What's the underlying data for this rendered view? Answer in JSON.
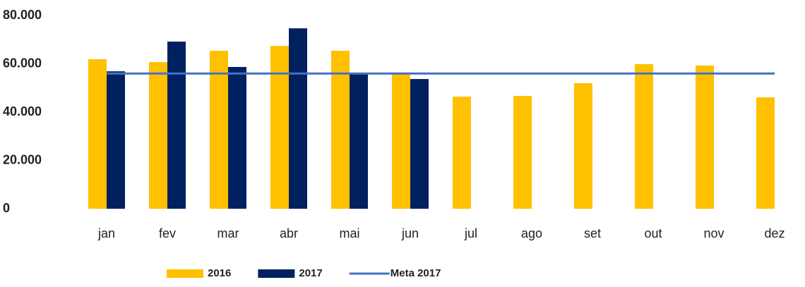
{
  "chart_data": {
    "type": "bar",
    "categories": [
      "jan",
      "fev",
      "mar",
      "abr",
      "mai",
      "jun",
      "jul",
      "ago",
      "set",
      "out",
      "nov",
      "dez"
    ],
    "series": [
      {
        "name": "2016",
        "color": "#FFC000",
        "values": [
          61900,
          60700,
          65400,
          67400,
          65400,
          56100,
          46400,
          46700,
          52000,
          59900,
          59300,
          46100
        ]
      },
      {
        "name": "2017",
        "color": "#002060",
        "values": [
          56900,
          69200,
          58700,
          74700,
          56300,
          53700,
          null,
          null,
          null,
          null,
          null,
          null
        ]
      },
      {
        "name": "Meta 2017",
        "color": "#4472C4",
        "type": "line",
        "values": [
          56000,
          56000,
          56000,
          56000,
          56000,
          56000,
          56000,
          56000,
          56000,
          56000,
          56000,
          56000
        ]
      }
    ],
    "ylim": [
      0,
      80000
    ],
    "yticks": [
      0,
      {
        "value": 20000,
        "label": "20.000"
      },
      {
        "value": 40000,
        "label": "40.000"
      },
      {
        "value": 60000,
        "label": "60.000"
      },
      {
        "value": 80000,
        "label": "80.000"
      }
    ],
    "grid": false,
    "legend": "bottom"
  }
}
